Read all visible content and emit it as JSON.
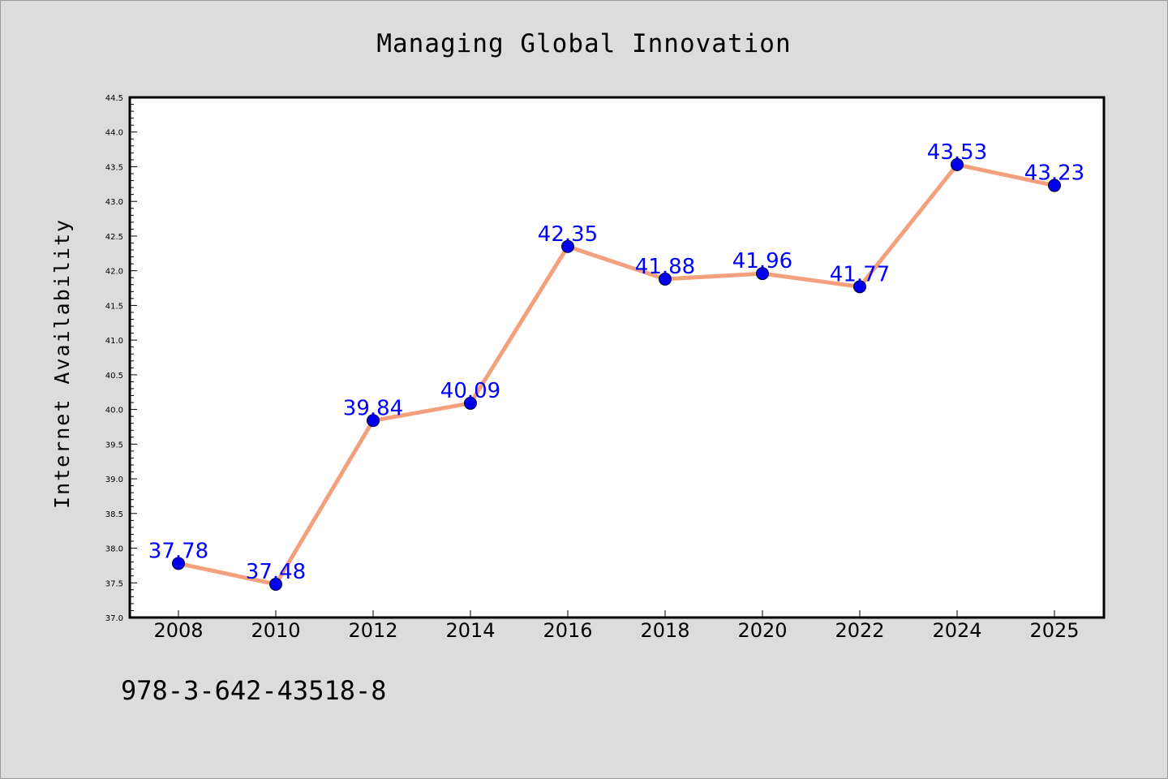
{
  "chart_data": {
    "type": "line",
    "title": "Managing Global Innovation",
    "xlabel": "",
    "ylabel": "Internet Availability",
    "categories": [
      "2008",
      "2010",
      "2012",
      "2014",
      "2016",
      "2018",
      "2020",
      "2022",
      "2024",
      "2025"
    ],
    "series": [
      {
        "values": [
          37.78,
          37.48,
          39.84,
          40.09,
          42.35,
          41.88,
          41.96,
          41.77,
          43.53,
          43.23
        ]
      }
    ],
    "data_labels": [
      "37.78",
      "37.48",
      "39.84",
      "40.09",
      "42.35",
      "41.88",
      "41.96",
      "41.77",
      "43.53",
      "43.23"
    ],
    "ylim": [
      37.0,
      44.5
    ],
    "y_ticks": [
      "37.0",
      "37.5",
      "38.0",
      "38.5",
      "39.0",
      "39.5",
      "40.0",
      "40.5",
      "41.0",
      "41.5",
      "42.0",
      "42.5",
      "43.0",
      "43.5",
      "44.0",
      "44.5"
    ],
    "grid": false,
    "legend": "none",
    "colors": {
      "line": "#f4a07c",
      "marker": "#0000ee",
      "data_label": "#0000ff",
      "background": "#dcdcdc",
      "plot_background": "#ffffff"
    }
  },
  "footer": {
    "isbn": "978-3-642-43518-8"
  }
}
